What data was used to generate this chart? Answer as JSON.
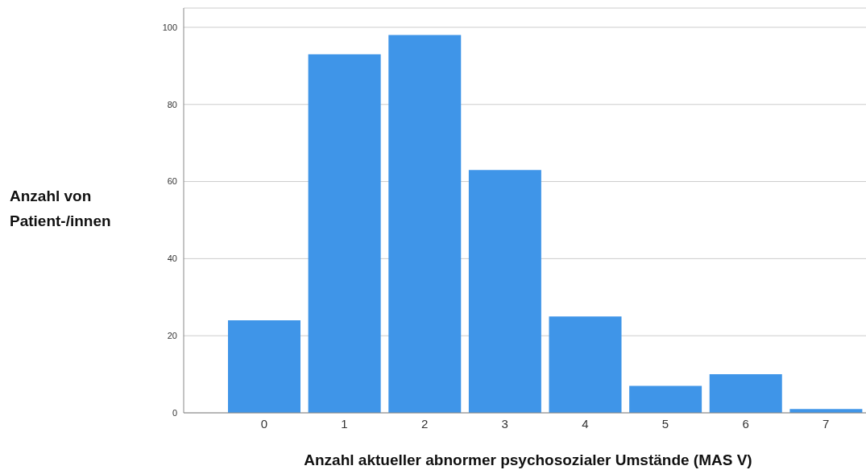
{
  "chart_data": {
    "type": "bar",
    "xlabel": "Anzahl aktueller abnormer psychosozialer Umstände (MAS V)",
    "ylabel": "Anzahl von Patient-/innen",
    "categories": [
      "0",
      "1",
      "2",
      "3",
      "4",
      "5",
      "6",
      "7"
    ],
    "values": [
      24,
      93,
      98,
      63,
      25,
      7,
      10,
      1
    ],
    "color": "#3f95e8",
    "ylim": [
      0,
      105
    ],
    "yticks": [
      0,
      20,
      40,
      60,
      80,
      100
    ],
    "grid": "y"
  }
}
